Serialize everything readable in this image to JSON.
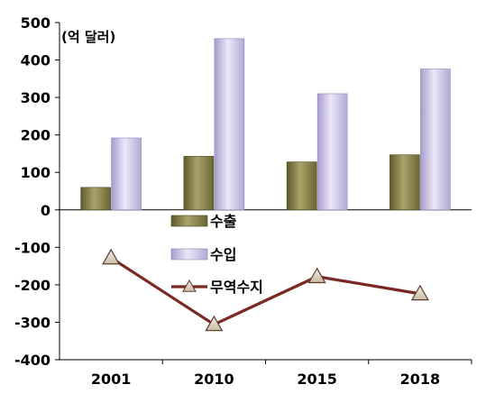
{
  "chart_data": {
    "type": "bar",
    "unit_label": "(억 달러)",
    "categories": [
      "2001",
      "2010",
      "2015",
      "2018"
    ],
    "ylim": [
      -400,
      500
    ],
    "yticks": [
      "500",
      "400",
      "300",
      "200",
      "100",
      "0",
      "-100",
      "-200",
      "-300",
      "-400"
    ],
    "series": [
      {
        "name": "수출",
        "kind": "bar",
        "color": "#8B8550",
        "values": [
          60,
          143,
          128,
          147
        ]
      },
      {
        "name": "수입",
        "kind": "bar",
        "color": "#C8BEE4",
        "values": [
          192,
          457,
          310,
          376
        ]
      },
      {
        "name": "무역수지",
        "kind": "line",
        "color": "#7A2A22",
        "marker": "triangle",
        "values": [
          -128,
          -306,
          -178,
          -224
        ]
      }
    ],
    "legend_position": "center"
  }
}
